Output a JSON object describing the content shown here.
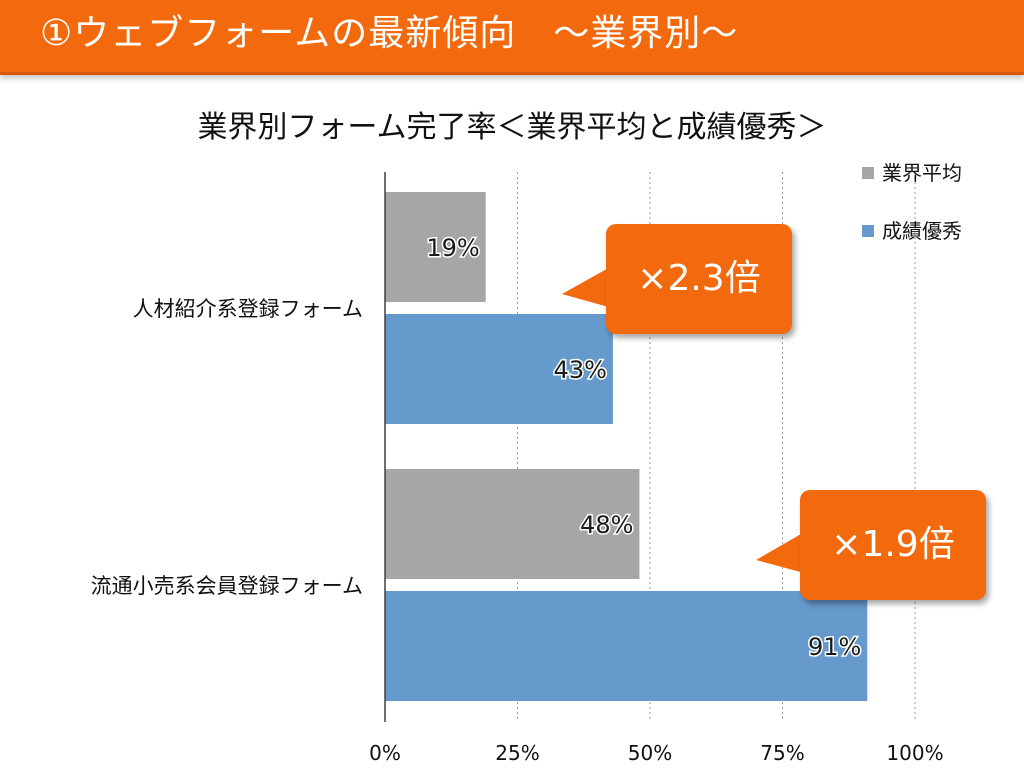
{
  "slide": {
    "header_title": "①ウェブフォームの最新傾向　〜業界別〜"
  },
  "colors": {
    "accent": "#f26a0d",
    "series_avg": "#a6a6a6",
    "series_top": "#6699cc"
  },
  "chart_data": {
    "type": "bar",
    "orientation": "horizontal",
    "title": "業界別フォーム完了率＜業界平均と成績優秀＞",
    "categories": [
      "人材紹介系登録フォーム",
      "流通小売系会員登録フォーム"
    ],
    "series": [
      {
        "name": "業界平均",
        "values": [
          19,
          48
        ],
        "labels": [
          "19%",
          "48%"
        ],
        "color": "#a6a6a6"
      },
      {
        "name": "成績優秀",
        "values": [
          43,
          91
        ],
        "labels": [
          "43%",
          "91%"
        ],
        "color": "#6699cc"
      }
    ],
    "xlim": [
      0,
      100
    ],
    "xticks": [
      0,
      25,
      50,
      75,
      100
    ],
    "xtick_labels": [
      "0%",
      "25%",
      "50%",
      "75%",
      "100%"
    ],
    "grid": "vertical dotted",
    "legend": "top-right",
    "annotations": [
      {
        "text": "×2.3倍",
        "category": "人材紹介系登録フォーム"
      },
      {
        "text": "×1.9倍",
        "category": "流通小売系会員登録フォーム"
      }
    ]
  }
}
